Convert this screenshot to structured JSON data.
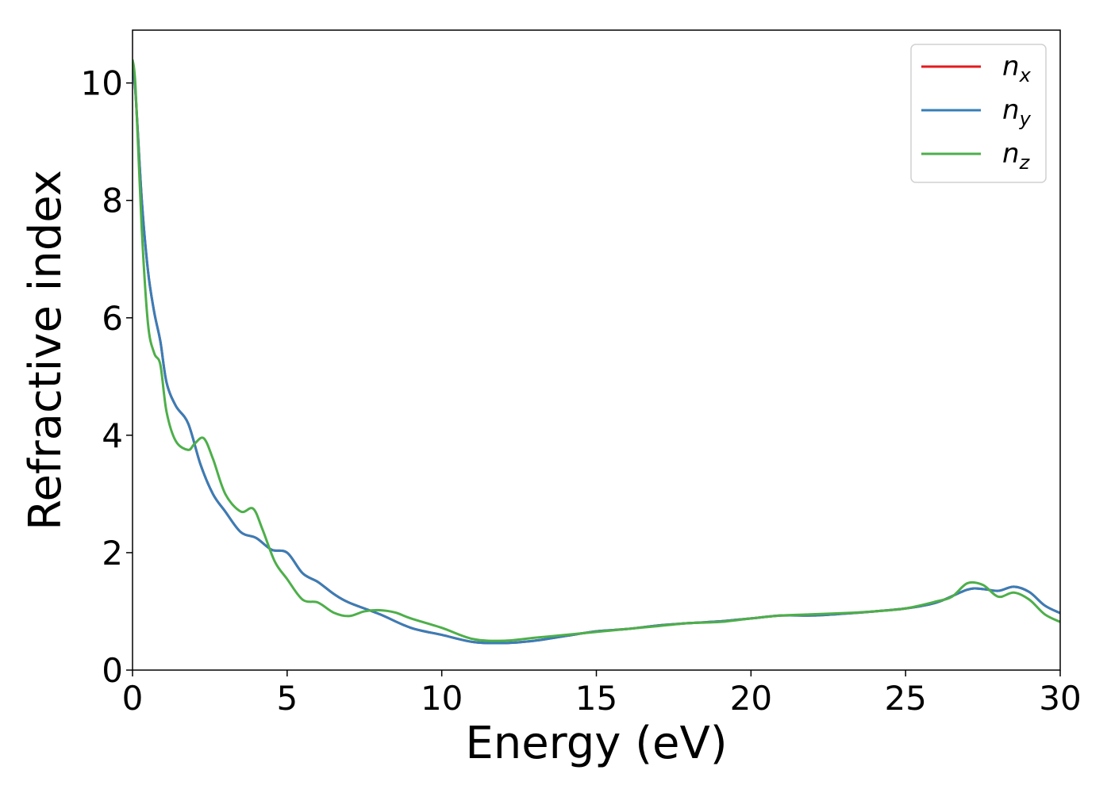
{
  "chart_data": {
    "type": "line",
    "xlabel": "Energy (eV)",
    "ylabel": "Refractive index",
    "xlim": [
      0,
      30
    ],
    "ylim": [
      0,
      10.9
    ],
    "xticks": [
      0,
      5,
      10,
      15,
      20,
      25,
      30
    ],
    "yticks": [
      0,
      2,
      4,
      6,
      8,
      10
    ],
    "grid": false,
    "legend_position": "top-right",
    "series": [
      {
        "name": "n_x",
        "label_base": "n",
        "label_sub": "x",
        "color": "#e41a1c",
        "x": [
          0,
          0.1,
          0.3,
          0.5,
          0.7,
          0.9,
          1.1,
          1.4,
          1.8,
          2.2,
          2.6,
          3.0,
          3.5,
          4.0,
          4.5,
          5.0,
          5.5,
          6.0,
          6.5,
          7.0,
          8.0,
          9.0,
          10.0,
          11.0,
          12.0,
          13.0,
          14.0,
          15.0,
          16.0,
          17.0,
          18.0,
          19.0,
          20.0,
          21.0,
          22.0,
          23.0,
          24.0,
          25.0,
          26.0,
          27.0,
          27.5,
          28.0,
          28.5,
          29.0,
          29.5,
          30.0
        ],
        "y": [
          10.3,
          9.8,
          8.0,
          6.8,
          6.1,
          5.6,
          4.9,
          4.5,
          4.2,
          3.5,
          3.0,
          2.7,
          2.35,
          2.25,
          2.05,
          2.0,
          1.65,
          1.5,
          1.3,
          1.15,
          0.95,
          0.72,
          0.6,
          0.48,
          0.46,
          0.5,
          0.58,
          0.66,
          0.7,
          0.76,
          0.8,
          0.83,
          0.88,
          0.93,
          0.93,
          0.96,
          1.0,
          1.05,
          1.15,
          1.37,
          1.38,
          1.35,
          1.42,
          1.33,
          1.1,
          0.97
        ]
      },
      {
        "name": "n_y",
        "label_base": "n",
        "label_sub": "y",
        "color": "#377eb8",
        "x": [
          0,
          0.1,
          0.3,
          0.5,
          0.7,
          0.9,
          1.1,
          1.4,
          1.8,
          2.2,
          2.6,
          3.0,
          3.5,
          4.0,
          4.5,
          5.0,
          5.5,
          6.0,
          6.5,
          7.0,
          8.0,
          9.0,
          10.0,
          11.0,
          12.0,
          13.0,
          14.0,
          15.0,
          16.0,
          17.0,
          18.0,
          19.0,
          20.0,
          21.0,
          22.0,
          23.0,
          24.0,
          25.0,
          26.0,
          27.0,
          27.5,
          28.0,
          28.5,
          29.0,
          29.5,
          30.0
        ],
        "y": [
          10.3,
          9.8,
          8.0,
          6.8,
          6.1,
          5.6,
          4.9,
          4.5,
          4.2,
          3.5,
          3.0,
          2.7,
          2.35,
          2.25,
          2.05,
          2.0,
          1.65,
          1.5,
          1.3,
          1.15,
          0.95,
          0.72,
          0.6,
          0.48,
          0.46,
          0.5,
          0.58,
          0.66,
          0.7,
          0.76,
          0.8,
          0.83,
          0.88,
          0.93,
          0.93,
          0.96,
          1.0,
          1.05,
          1.15,
          1.37,
          1.38,
          1.35,
          1.42,
          1.33,
          1.1,
          0.97
        ]
      },
      {
        "name": "n_z",
        "label_base": "n",
        "label_sub": "z",
        "color": "#4daf4a",
        "x": [
          0,
          0.1,
          0.3,
          0.5,
          0.7,
          0.9,
          1.1,
          1.4,
          1.8,
          2.0,
          2.3,
          2.6,
          3.0,
          3.5,
          3.9,
          4.2,
          4.6,
          5.0,
          5.5,
          6.0,
          6.5,
          7.0,
          7.5,
          8.0,
          8.5,
          9.0,
          10.0,
          11.0,
          12.0,
          13.0,
          14.0,
          15.0,
          16.0,
          17.0,
          18.0,
          19.0,
          20.0,
          21.0,
          22.0,
          23.0,
          24.0,
          25.0,
          26.0,
          26.5,
          27.0,
          27.5,
          28.0,
          28.5,
          29.0,
          29.5,
          30.0
        ],
        "y": [
          10.4,
          9.9,
          7.5,
          5.9,
          5.4,
          5.2,
          4.4,
          3.9,
          3.75,
          3.85,
          3.95,
          3.6,
          3.0,
          2.7,
          2.75,
          2.4,
          1.85,
          1.55,
          1.2,
          1.15,
          0.98,
          0.92,
          1.0,
          1.02,
          0.98,
          0.88,
          0.72,
          0.53,
          0.5,
          0.55,
          0.6,
          0.65,
          0.7,
          0.75,
          0.8,
          0.82,
          0.88,
          0.93,
          0.95,
          0.97,
          1.0,
          1.05,
          1.17,
          1.25,
          1.48,
          1.45,
          1.25,
          1.32,
          1.2,
          0.95,
          0.82
        ]
      }
    ]
  }
}
